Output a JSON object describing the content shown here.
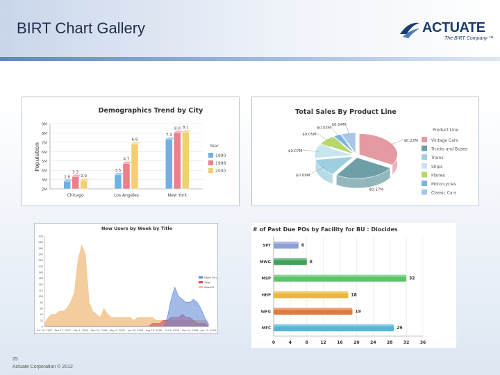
{
  "slide": {
    "title": "BIRT Chart Gallery",
    "page_number": "25",
    "copyright": "Actuate Corporation © 2012"
  },
  "logo": {
    "word": "ACTUATE",
    "tagline": "The BIRT Company ™"
  },
  "colors": {
    "header_accent": "#5e86c2",
    "title": "#1f2d4a"
  },
  "chart_data": [
    {
      "type": "bar",
      "title": "Demographics Trend by City",
      "ylabel": "Population",
      "categories": [
        "Chicago",
        "Los Angeles",
        "New York"
      ],
      "legend_title": "Year",
      "legend_position": "right",
      "y_ticks": [
        "2M",
        "3M",
        "4M",
        "5M",
        "6M",
        "7M",
        "8M",
        "9M"
      ],
      "ylim": [
        2,
        9
      ],
      "series": [
        {
          "name": "1990",
          "values": [
            2.8,
            3.5,
            7.3
          ],
          "labels": [
            "2.8",
            "3.5",
            "7.3"
          ],
          "color": "#6fb0e6"
        },
        {
          "name": "1998",
          "values": [
            3.3,
            4.7,
            8.0
          ],
          "labels": [
            "3.3",
            "4.7",
            "8.0"
          ],
          "color": "#ec7f8a"
        },
        {
          "name": "2000",
          "values": [
            2.9,
            6.8,
            8.1
          ],
          "labels": [
            "2.9",
            "6.8",
            "8.1"
          ],
          "color": "#f2cf72"
        }
      ],
      "grid": true
    },
    {
      "type": "pie",
      "title": "Total Sales By Product Line",
      "legend_title": "Product Line",
      "legend_position": "right",
      "categories": [
        "Vintage Cars",
        "Trucks and Buses",
        "Trains",
        "Ships",
        "Planes",
        "Motorcycles",
        "Classic Cars"
      ],
      "values": [
        0.22,
        0.17,
        0.09,
        0.07,
        0.05,
        0.02,
        0.04
      ],
      "slice_labels": [
        "$0.22M",
        "$0.17M",
        "$0.09M",
        "$0.07M",
        "$0.05M",
        "$0.02M",
        "$0.04M"
      ],
      "colors": [
        "#e59aa3",
        "#6e9fa8",
        "#9dcfe0",
        "#c5e6ee",
        "#b7d66c",
        "#7ab4e0",
        "#a8c6e8"
      ],
      "style": "3d-exploded"
    },
    {
      "type": "area",
      "title": "New Users by Week by Title",
      "x_ticks": [
        "Oct 29, 2007",
        "Dec 17, 2007",
        "Feb 4, 2008",
        "Mar 24, 2008",
        "May 5, 2008",
        "Jun 30, 2008",
        "Aug 18, 2008",
        "Oct 6, 2008",
        "Nov 24, 2008",
        "Jan 12, 2009"
      ],
      "y_ticks": [
        "0",
        "2K",
        "4K",
        "6K",
        "8K",
        "10K",
        "12K",
        "14K",
        "16K",
        "18K",
        "20K",
        "22K",
        "24K",
        "26K",
        "28K",
        "30K"
      ],
      "legend_position": "right",
      "series": [
        {
          "name": "Word Of Life",
          "color": "#5a84d6",
          "values": [
            0,
            0,
            0,
            0,
            0,
            0,
            0,
            0,
            0,
            0,
            0,
            0,
            0,
            0,
            0,
            0,
            0,
            0,
            0,
            0,
            0,
            0,
            0,
            0,
            0,
            0,
            0,
            0,
            0,
            0,
            0,
            0,
            0,
            3,
            9,
            13,
            10,
            9,
            8,
            8,
            9,
            8,
            6,
            3,
            1
          ]
        },
        {
          "name": "Tutor",
          "color": "#d9434f",
          "values": [
            0,
            0,
            0,
            0,
            0,
            0,
            0,
            0,
            0,
            0,
            0,
            0,
            0,
            0,
            0,
            0,
            0,
            0,
            0,
            0,
            0,
            0,
            0,
            0,
            0,
            0,
            0,
            0,
            0,
            1,
            1,
            1,
            2,
            2,
            3,
            3,
            3,
            4,
            3,
            3,
            2,
            1,
            1,
            1,
            0
          ]
        },
        {
          "name": "Atlas03",
          "color": "#f2c48d",
          "values": [
            1,
            3,
            4,
            4,
            5,
            5,
            6,
            8,
            11,
            22,
            27,
            24,
            8,
            5,
            4,
            3,
            6,
            4,
            3,
            3,
            3,
            3,
            3,
            3,
            2,
            3,
            3,
            3,
            3,
            3,
            2,
            2,
            2,
            2,
            2,
            2,
            2,
            2,
            2,
            2,
            2,
            2,
            2,
            2,
            1
          ]
        }
      ],
      "ylim": [
        0,
        30
      ]
    },
    {
      "type": "bar",
      "orientation": "horizontal",
      "title": "# of Past Due POs by Facility for BU : Diocides",
      "categories": [
        "SPT",
        "MWG",
        "MSP",
        "HHP",
        "WFG",
        "MFC"
      ],
      "values": [
        6,
        8,
        32,
        18,
        19,
        29
      ],
      "colors": [
        "#8da0d6",
        "#43a05a",
        "#5dc46a",
        "#e8b839",
        "#e07a3a",
        "#54b7d6"
      ],
      "x_ticks": [
        "0",
        "4",
        "8",
        "12",
        "16",
        "20",
        "24",
        "28",
        "32",
        "36"
      ],
      "xlim": [
        0,
        36
      ],
      "grid": true
    }
  ]
}
